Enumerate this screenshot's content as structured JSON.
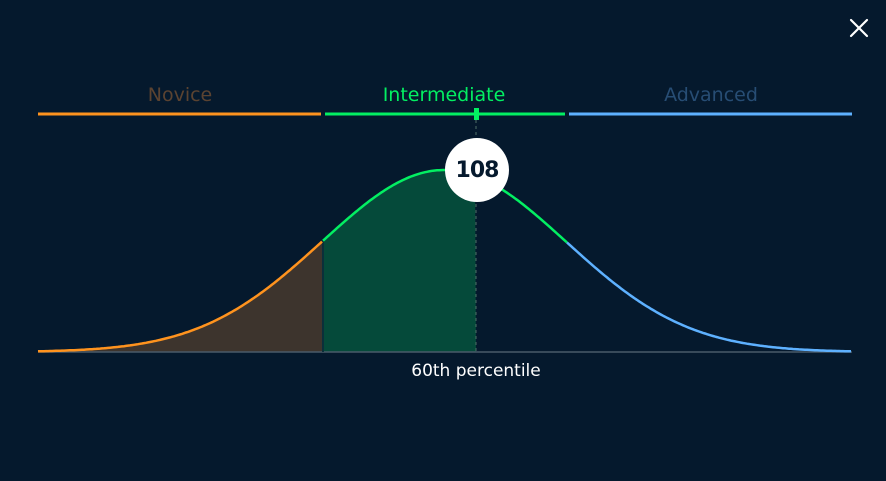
{
  "close_icon": "close-icon",
  "levels": [
    {
      "label": "Novice",
      "color": "#ff931e",
      "label_color": "#5b4331"
    },
    {
      "label": "Intermediate",
      "color": "#03ef62",
      "label_color": "#03ef62"
    },
    {
      "label": "Advanced",
      "color": "#5eb1ff",
      "label_color": "#274d74"
    }
  ],
  "score": "108",
  "percentile_label": "60th percentile",
  "chart_data": {
    "type": "area",
    "score": 108,
    "percentile": 60,
    "regions": [
      "Novice",
      "Intermediate",
      "Advanced"
    ],
    "fill_colors": {
      "novice": "#3d342d",
      "intermediate": "#054a3a"
    },
    "colors": {
      "background": "#05192d",
      "baseline": "#4a5a6a"
    }
  }
}
